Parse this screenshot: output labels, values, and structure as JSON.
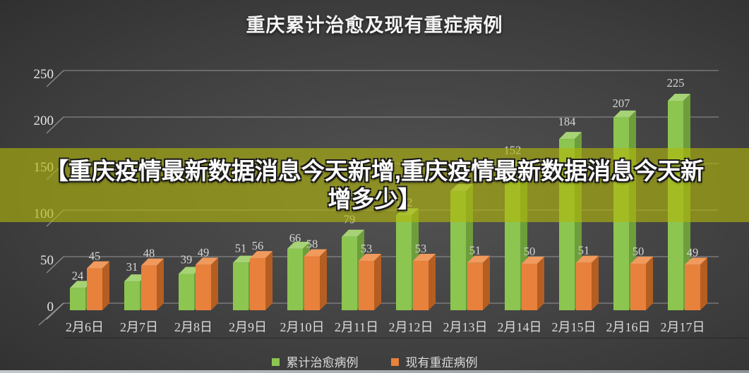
{
  "title": "重庆累计治愈及现有重症病例",
  "overlay": {
    "line1": "【重庆疫情最新数据消息今天新增,重庆疫情最新数据消息今天新",
    "line2": "增多少】",
    "bg_color": "rgba(178,183,10,0.62)",
    "text_color": "#ffffff"
  },
  "chart_data": {
    "type": "bar",
    "title": "重庆累计治愈及现有重症病例",
    "projection": "3d-oblique",
    "categories": [
      "2月6日",
      "2月7日",
      "2月8日",
      "2月9日",
      "2月10日",
      "2月11日",
      "2月12日",
      "2月13日",
      "2月14日",
      "2月15日",
      "2月16日",
      "2月17日"
    ],
    "series": [
      {
        "name": "累计治愈病例",
        "color": "#8CC550",
        "color_top": "#A6D375",
        "color_side": "#6E9E3C",
        "values": [
          24,
          31,
          39,
          51,
          66,
          79,
          102,
          128,
          152,
          184,
          207,
          225
        ]
      },
      {
        "name": "现有重症病例",
        "color": "#E8813C",
        "color_top": "#F09A5E",
        "color_side": "#B55E22",
        "values": [
          45,
          48,
          49,
          56,
          58,
          53,
          53,
          51,
          50,
          51,
          50,
          49
        ]
      }
    ],
    "ylim": [
      0,
      250
    ],
    "yticks": [
      0,
      50,
      100,
      150,
      200,
      250
    ],
    "grid": true,
    "legend_position": "bottom",
    "gridline_color": "#9a9a9a",
    "label_color": "#d6d6d6",
    "background": "dark-gray-gradient"
  },
  "legend": {
    "items": [
      {
        "label": "累计治愈病例",
        "color": "#8CC550"
      },
      {
        "label": "现有重症病例",
        "color": "#E8813C"
      }
    ]
  }
}
